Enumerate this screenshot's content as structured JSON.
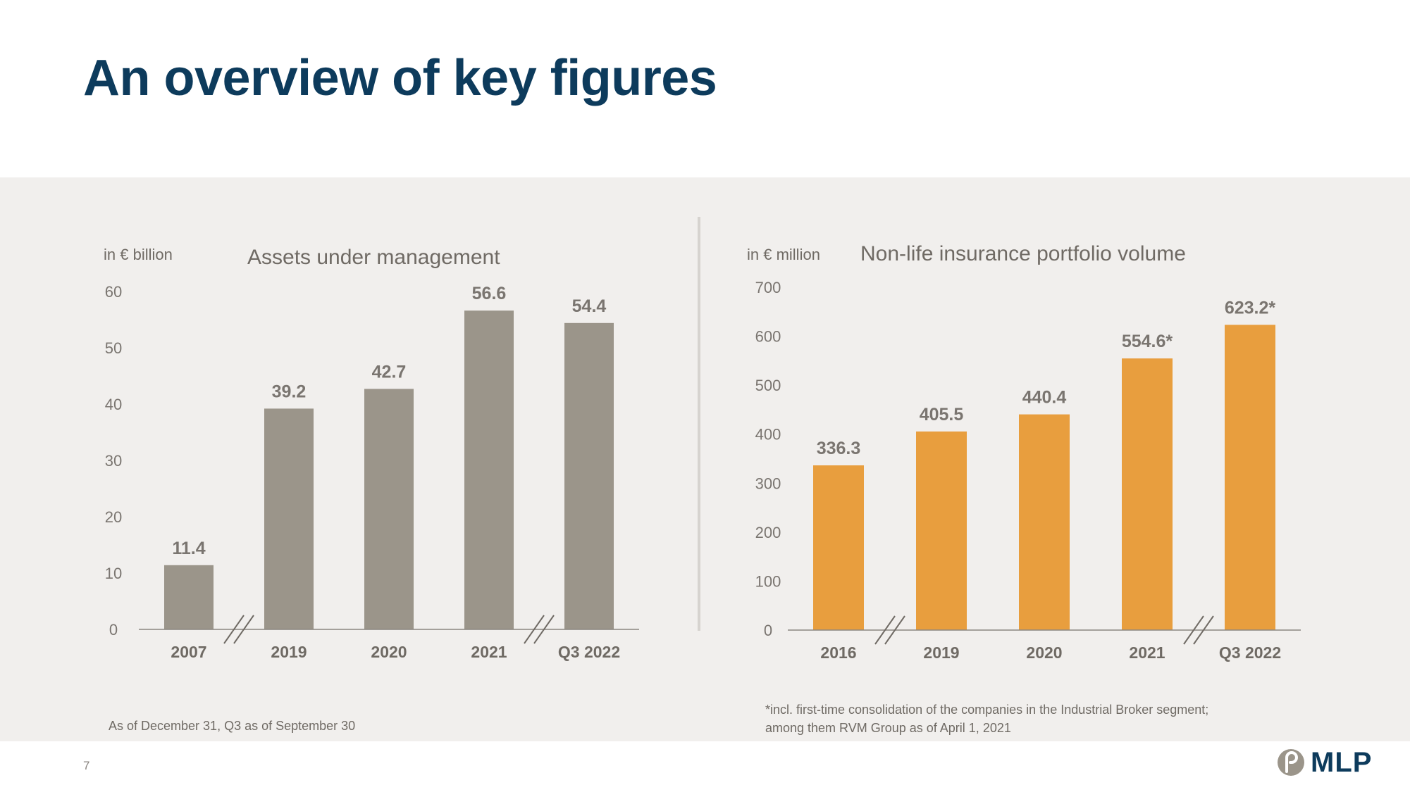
{
  "page": {
    "title": "An overview of key figures",
    "page_number": "7",
    "logo_text": "MLP"
  },
  "colors": {
    "title": "#0d3b5c",
    "panel_bg": "#f1efed",
    "aum_bar": "#9b958a",
    "nonlife_bar": "#e89e3e",
    "text_gray": "#6f6a64",
    "logo_mark": "#9b958a"
  },
  "chart_data": [
    {
      "type": "bar",
      "title": "Assets under management",
      "unit_label": "in € billion",
      "categories": [
        "2007",
        "2019",
        "2020",
        "2021",
        "Q3 2022"
      ],
      "values": [
        11.4,
        39.2,
        42.7,
        56.6,
        54.4
      ],
      "value_labels": [
        "11.4",
        "39.2",
        "42.7",
        "56.6",
        "54.4"
      ],
      "ylim": [
        0,
        60
      ],
      "yticks": [
        0,
        10,
        20,
        30,
        40,
        50,
        60
      ],
      "axis_breaks_after": [
        "2007",
        "2021"
      ],
      "grid": false,
      "legend": "none",
      "bar_color": "#9b958a",
      "footnote": "As of December 31, Q3 as of September 30"
    },
    {
      "type": "bar",
      "title": "Non-life insurance portfolio volume",
      "unit_label": "in € million",
      "categories": [
        "2016",
        "2019",
        "2020",
        "2021",
        "Q3 2022"
      ],
      "values": [
        336.3,
        405.5,
        440.4,
        554.6,
        623.2
      ],
      "value_labels": [
        "336.3",
        "405.5",
        "440.4",
        "554.6*",
        "623.2*"
      ],
      "ylim": [
        0,
        700
      ],
      "yticks": [
        0,
        100,
        200,
        300,
        400,
        500,
        600,
        700
      ],
      "axis_breaks_after": [
        "2016",
        "2021"
      ],
      "grid": false,
      "legend": "none",
      "bar_color": "#e89e3e",
      "footnote_lines": [
        "*incl. first-time consolidation of the companies in the Industrial Broker segment;",
        "among them RVM Group as of April 1, 2021"
      ]
    }
  ]
}
